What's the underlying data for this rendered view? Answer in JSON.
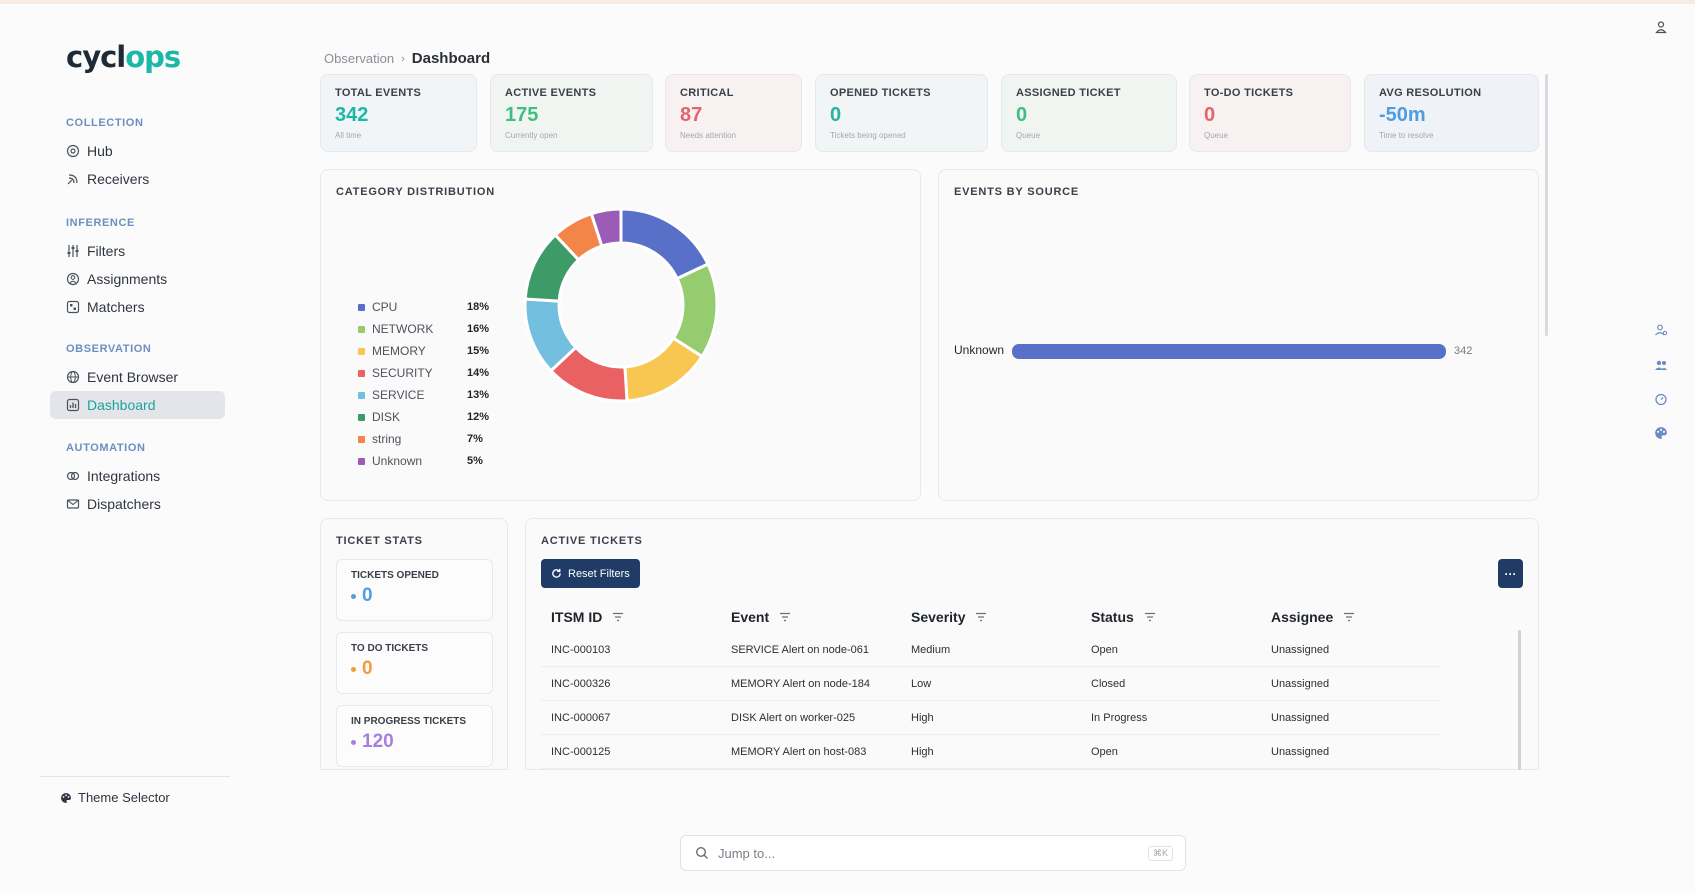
{
  "app": {
    "logo_part1": "cycl",
    "logo_part2": "ps"
  },
  "sidebar": {
    "sections": [
      {
        "title": "COLLECTION",
        "items": [
          {
            "label": "Hub",
            "icon": "hub-icon"
          },
          {
            "label": "Receivers",
            "icon": "receivers-icon"
          }
        ]
      },
      {
        "title": "INFERENCE",
        "items": [
          {
            "label": "Filters",
            "icon": "filters-icon"
          },
          {
            "label": "Assignments",
            "icon": "assignments-icon"
          },
          {
            "label": "Matchers",
            "icon": "matchers-icon"
          }
        ]
      },
      {
        "title": "OBSERVATION",
        "items": [
          {
            "label": "Event Browser",
            "icon": "globe-icon"
          },
          {
            "label": "Dashboard",
            "icon": "dashboard-icon",
            "active": true
          }
        ]
      },
      {
        "title": "AUTOMATION",
        "items": [
          {
            "label": "Integrations",
            "icon": "integrations-icon"
          },
          {
            "label": "Dispatchers",
            "icon": "dispatchers-icon"
          }
        ]
      }
    ],
    "theme_selector": "Theme Selector"
  },
  "breadcrumb": {
    "parent": "Observation",
    "current": "Dashboard"
  },
  "stats": [
    {
      "label": "TOTAL EVENTS",
      "value": "342",
      "sub": "All time",
      "color": "#1bb8a7"
    },
    {
      "label": "ACTIVE EVENTS",
      "value": "175",
      "sub": "Currently open",
      "color": "#3fbf7f"
    },
    {
      "label": "CRITICAL",
      "value": "87",
      "sub": "Needs attention",
      "color": "#e5646b"
    },
    {
      "label": "OPENED TICKETS",
      "value": "0",
      "sub": "Tickets being opened",
      "color": "#27b39f"
    },
    {
      "label": "ASSIGNED TICKET",
      "value": "0",
      "sub": "Queue",
      "color": "#3fbf7f"
    },
    {
      "label": "TO-DO TICKETS",
      "value": "0",
      "sub": "Queue",
      "color": "#e5646b"
    },
    {
      "label": "AVG RESOLUTION",
      "value": "-50m",
      "sub": "Time to resolve",
      "color": "#4f9de0"
    }
  ],
  "category_distribution": {
    "title": "CATEGORY DISTRIBUTION",
    "chart_data": {
      "type": "pie",
      "categories": [
        "CPU",
        "NETWORK",
        "MEMORY",
        "SECURITY",
        "SERVICE",
        "DISK",
        "string",
        "Unknown"
      ],
      "values": [
        18,
        16,
        15,
        14,
        13,
        12,
        7,
        5
      ],
      "labels": [
        "18%",
        "16%",
        "15%",
        "14%",
        "13%",
        "12%",
        "7%",
        "5%"
      ],
      "colors": [
        "#5870c8",
        "#95cc6f",
        "#f8c751",
        "#ea6164",
        "#73bfdf",
        "#3c9b66",
        "#f48549",
        "#9d5bb8"
      ]
    }
  },
  "events_by_source": {
    "title": "EVENTS BY SOURCE",
    "chart_data": {
      "type": "bar",
      "categories": [
        "Unknown"
      ],
      "values": [
        342
      ],
      "value_labels": [
        "342"
      ],
      "color": "#5870c8"
    }
  },
  "ticket_stats": {
    "title": "TICKET STATS",
    "items": [
      {
        "label": "TICKETS OPENED",
        "value": "0",
        "color": "#4f9de0"
      },
      {
        "label": "TO DO TICKETS",
        "value": "0",
        "color": "#f39b3d"
      },
      {
        "label": "IN PROGRESS TICKETS",
        "value": "120",
        "color": "#a77ee0"
      }
    ]
  },
  "active_tickets": {
    "title": "ACTIVE TICKETS",
    "reset_label": "Reset Filters",
    "more_label": "···",
    "columns": [
      "ITSM ID",
      "Event",
      "Severity",
      "Status",
      "Assignee"
    ],
    "rows": [
      [
        "INC-000103",
        "SERVICE Alert on node-061",
        "Medium",
        "Open",
        "Unassigned"
      ],
      [
        "INC-000326",
        "MEMORY Alert on node-184",
        "Low",
        "Closed",
        "Unassigned"
      ],
      [
        "INC-000067",
        "DISK Alert on worker-025",
        "High",
        "In Progress",
        "Unassigned"
      ],
      [
        "INC-000125",
        "MEMORY Alert on host-083",
        "High",
        "Open",
        "Unassigned"
      ]
    ]
  },
  "jump": {
    "placeholder": "Jump to...",
    "shortcut": "⌘K"
  }
}
